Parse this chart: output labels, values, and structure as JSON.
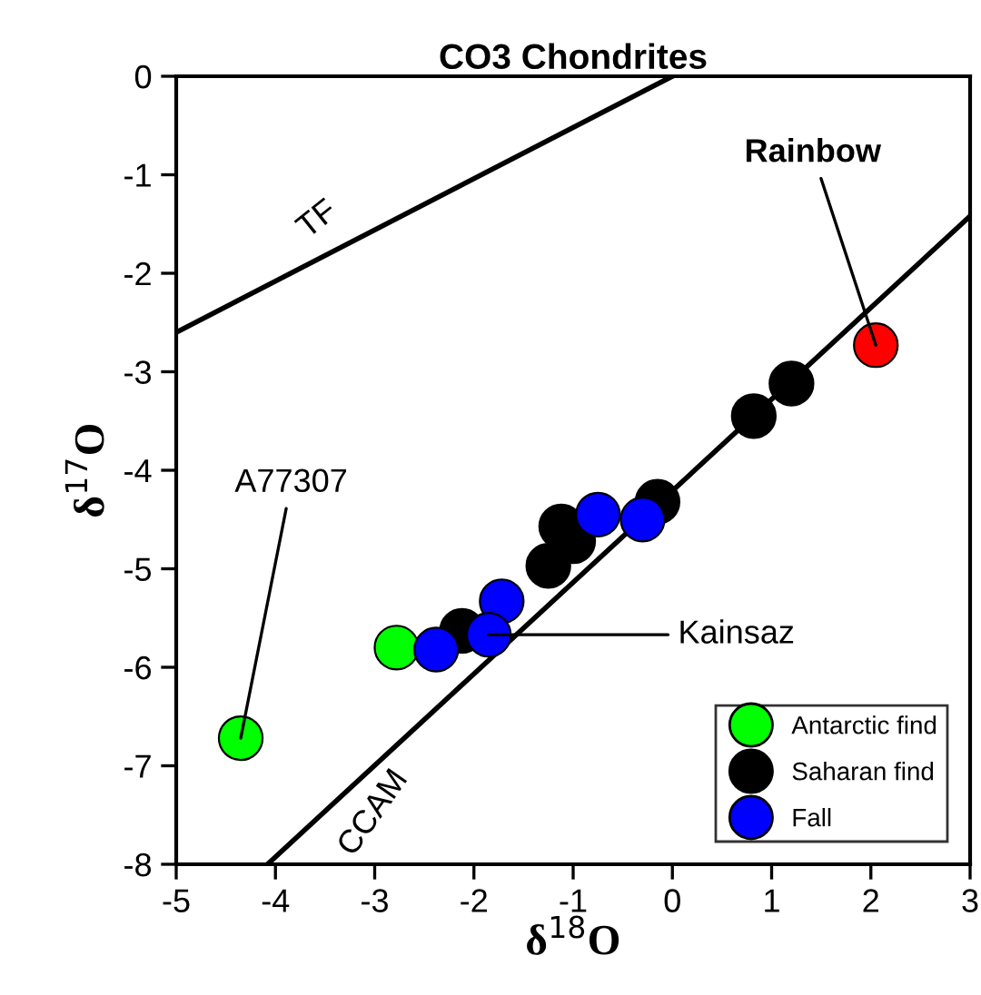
{
  "chart_data": {
    "type": "scatter",
    "title": "CO3 Chondrites",
    "xlabel": "δ$^{18}$O",
    "ylabel": "δ$^{17}$O",
    "xlim": [
      -5,
      3
    ],
    "ylim": [
      -8,
      0
    ],
    "xticks": [
      -5,
      -4,
      -3,
      -2,
      -1,
      0,
      1,
      2,
      3
    ],
    "yticks": [
      -8,
      -7,
      -6,
      -5,
      -4,
      -3,
      -2,
      -1,
      0
    ],
    "grid": false,
    "legend": "bottom right",
    "marker": "circle",
    "series": [
      {
        "name": "Antarctic find",
        "color": "#00ff00",
        "x": [
          -4.35,
          -2.78
        ],
        "values": [
          -6.72,
          -5.8
        ]
      },
      {
        "name": "Saharan find",
        "color": "#000000",
        "x": [
          1.2,
          0.82,
          -0.15,
          -1.12,
          -1.0,
          -1.25,
          -2.12
        ],
        "values": [
          -3.12,
          -3.45,
          -4.32,
          -4.57,
          -4.72,
          -4.97,
          -5.63
        ]
      },
      {
        "name": "Fall",
        "color": "#0000ff",
        "x": [
          -0.75,
          -0.3,
          -1.72,
          -1.85,
          -2.38
        ],
        "values": [
          -4.45,
          -4.5,
          -5.33,
          -5.67,
          -5.82
        ]
      },
      {
        "type": "scatter",
        "color": "#ff0000",
        "x": [
          2.05
        ],
        "values": [
          -2.73
        ]
      },
      {
        "type": "line",
        "name": "TF",
        "marker": "none",
        "color": "#000000",
        "x": [
          -5,
          0
        ],
        "values": [
          -2.6,
          0
        ]
      },
      {
        "type": "line",
        "name": "CCAM",
        "marker": "none",
        "color": "#000000",
        "x": [
          -4.08,
          3
        ],
        "values": [
          -8,
          -1.42
        ]
      }
    ],
    "annotations": [
      {
        "text": "Rainbow",
        "x": 2.05,
        "y": -2.73
      },
      {
        "text": "A77307",
        "x": -4.35,
        "y": -6.72
      },
      {
        "text": "Kainsaz",
        "x": -1.85,
        "y": -5.67
      }
    ]
  }
}
